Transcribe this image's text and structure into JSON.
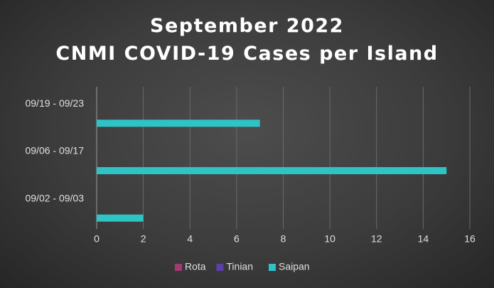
{
  "chart_data": {
    "type": "bar",
    "orientation": "horizontal",
    "title": "September 2022",
    "subtitle": "CNMI COVID-19 Cases per Island",
    "categories": [
      "09/02 - 09/03",
      "09/06 - 09/17",
      "09/19 - 09/23"
    ],
    "series": [
      {
        "name": "Rota",
        "color": "#a23b72",
        "values": [
          0,
          0,
          0
        ]
      },
      {
        "name": "Tinian",
        "color": "#5b3fa8",
        "values": [
          0,
          0,
          0
        ]
      },
      {
        "name": "Saipan",
        "color": "#2ec4c6",
        "values": [
          2,
          15,
          7
        ]
      }
    ],
    "xlim": [
      0,
      16
    ],
    "xticks": [
      0,
      2,
      4,
      6,
      8,
      10,
      12,
      14,
      16
    ],
    "xlabel": "",
    "ylabel": "",
    "grid": true,
    "legend_position": "bottom"
  }
}
